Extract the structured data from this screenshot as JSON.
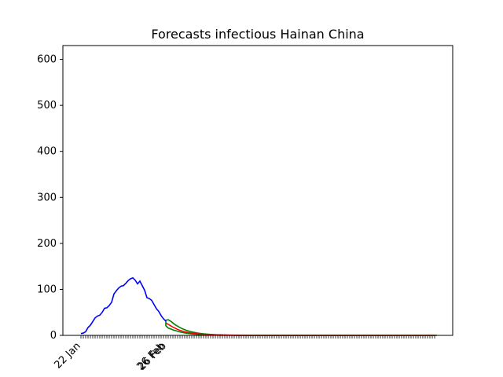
{
  "chart_data": {
    "type": "line",
    "title": "Forecasts infectious Hainan China",
    "xlabel": "",
    "ylabel": "",
    "ylim": [
      0,
      630
    ],
    "yticks": [
      0,
      100,
      200,
      300,
      400,
      500,
      600
    ],
    "xtick_labels": [
      "22 Jan",
      "26 Feb",
      "26 Feb"
    ],
    "grid": false,
    "colors": {
      "observed": "#0000ff",
      "forecast": "#ff0000",
      "band": "#008000"
    },
    "series": [
      {
        "role": "observed",
        "start_day": 0,
        "values": [
          4,
          5,
          8,
          17,
          22,
          30,
          38,
          42,
          44,
          50,
          59,
          60,
          65,
          72,
          90,
          97,
          103,
          107,
          108,
          113,
          119,
          123,
          125,
          120,
          112,
          118,
          108,
          98,
          82,
          80,
          76,
          67,
          58,
          52,
          43,
          36,
          31
        ]
      },
      {
        "role": "forecast",
        "start_day": 36,
        "values": [
          27,
          24,
          21,
          18,
          15.5,
          13,
          11,
          9.4,
          8,
          6.8,
          5.8,
          4.9,
          4.2,
          3.6,
          3.1,
          2.6,
          2.2,
          1.9,
          1.6,
          1.4,
          1.2,
          1.0,
          0.9,
          0.8,
          0.7,
          0.6,
          0.5,
          0.4,
          0.4,
          0.3,
          0.3,
          0.2,
          0.2,
          0.2,
          0.1,
          0.1,
          0.1,
          0.1,
          0.1,
          0.1,
          0.1,
          0.1,
          0.1,
          0.1,
          0.1,
          0.1,
          0.1,
          0.1,
          0.1,
          0.1,
          0.1,
          0.1,
          0.1,
          0.1,
          0.1,
          0.1,
          0.1,
          0.1,
          0.1,
          0.1,
          0.1,
          0.1,
          0.1,
          0.1,
          0.1,
          0.1,
          0.1,
          0.1,
          0.1,
          0.1,
          0.1,
          0.1,
          0.1,
          0.1,
          0.1,
          0.1,
          0.1,
          0.1,
          0.1,
          0.1,
          0.1,
          0.1,
          0.1,
          0.1,
          0.1,
          0.1,
          0.1,
          0.1,
          0.1,
          0.1,
          0.1,
          0.1,
          0.1,
          0.1,
          0.1,
          0.1,
          0.1,
          0.1,
          0.1,
          0.1,
          0.1,
          0.1,
          0.1,
          0.1,
          0.1,
          0.1,
          0.1,
          0.1,
          0.1,
          0.1,
          0.1,
          0.1,
          0.1,
          0.1,
          0.1
        ]
      },
      {
        "role": "upper",
        "start_day": 36,
        "values": [
          33,
          34,
          31,
          27,
          23,
          20,
          17,
          14.5,
          12.3,
          10.5,
          9,
          7.6,
          6.5,
          5.5,
          4.7,
          4,
          3.4,
          2.9,
          2.5,
          2.1,
          1.8,
          1.5,
          1.3,
          1.1,
          0.9,
          0.8,
          0.7,
          0.6,
          0.5,
          0.4,
          0.4,
          0.3,
          0.3,
          0.2,
          0.2,
          0.2,
          0.2,
          0.2,
          0.2,
          0.2,
          0.2,
          0.2,
          0.2,
          0.2,
          0.2,
          0.2,
          0.2,
          0.2,
          0.2,
          0.2,
          0.2,
          0.2,
          0.2,
          0.2,
          0.2,
          0.2,
          0.2,
          0.2,
          0.2,
          0.2,
          0.2,
          0.2,
          0.2,
          0.2,
          0.2,
          0.2,
          0.2,
          0.2,
          0.2,
          0.2,
          0.2,
          0.2,
          0.2,
          0.2,
          0.2,
          0.2,
          0.2,
          0.2,
          0.2,
          0.2,
          0.2,
          0.2,
          0.2,
          0.2,
          0.2,
          0.2,
          0.2,
          0.2,
          0.2,
          0.2,
          0.2,
          0.2,
          0.2,
          0.2,
          0.2,
          0.2,
          0.2,
          0.2,
          0.2,
          0.2,
          0.2,
          0.2,
          0.2,
          0.2,
          0.2,
          0.2,
          0.2,
          0.2,
          0.2,
          0.2,
          0.2,
          0.2,
          0.2,
          0.2,
          0.2
        ]
      },
      {
        "role": "lower",
        "start_day": 36,
        "values": [
          21,
          16,
          14,
          12,
          10.5,
          9,
          7.6,
          6.4,
          5.4,
          4.6,
          3.9,
          3.3,
          2.8,
          2.4,
          2,
          1.7,
          1.4,
          1.2,
          1,
          0.9,
          0.7,
          0.6,
          0.5,
          0.4,
          0.4,
          0.3,
          0.3,
          0.2,
          0.2,
          0.2,
          0.1,
          0.1,
          0.1,
          0.1,
          0.1,
          0.1,
          0.1,
          0.1,
          0.1,
          0.1,
          0.1,
          0.1,
          0.1,
          0.1,
          0.1,
          0.1,
          0.1,
          0.1,
          0.1,
          0.1,
          0.1,
          0.1,
          0.1,
          0.1,
          0.1,
          0.1,
          0.1,
          0.1,
          0.1,
          0.1,
          0.1,
          0.1,
          0.1,
          0.1,
          0.1,
          0.1,
          0.1,
          0.1,
          0.1,
          0.1,
          0.1,
          0.1,
          0.1,
          0.1,
          0.1,
          0.1,
          0.1,
          0.1,
          0.1,
          0.1,
          0.1,
          0.1,
          0.1,
          0.1,
          0.1,
          0.1,
          0.1,
          0.1,
          0.1,
          0.1,
          0.1,
          0.1,
          0.1,
          0.1,
          0.1,
          0.1,
          0.1,
          0.1,
          0.1,
          0.1,
          0.1,
          0.1,
          0.1,
          0.1,
          0.1,
          0.1,
          0.1,
          0.1,
          0.1,
          0.1,
          0.1,
          0.1,
          0.1,
          0.1,
          0.1,
          0.1
        ]
      }
    ]
  }
}
